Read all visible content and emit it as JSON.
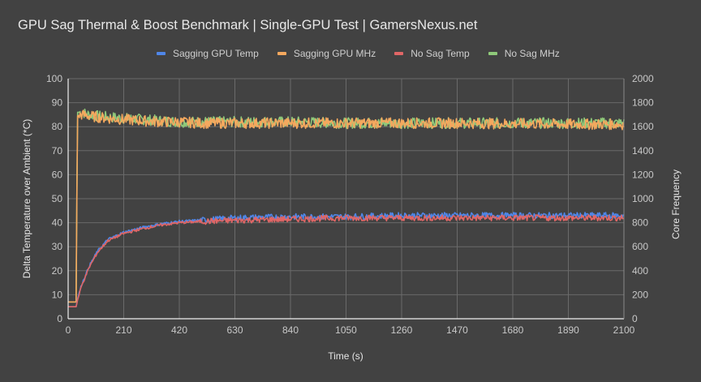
{
  "title": "GPU Sag Thermal & Boost Benchmark | Single-GPU Test | GamersNexus.net",
  "legend": [
    {
      "label": "Sagging GPU Temp",
      "color": "#4f86e8"
    },
    {
      "label": "Sagging GPU MHz",
      "color": "#f4a85e"
    },
    {
      "label": "No Sag Temp",
      "color": "#e06666"
    },
    {
      "label": "No Sag MHz",
      "color": "#8fc97a"
    }
  ],
  "chart_data": {
    "type": "line",
    "title": "GPU Sag Thermal & Boost Benchmark | Single-GPU Test | GamersNexus.net",
    "xlabel": "Time (s)",
    "ylabel": "Delta Temperature over Ambient (*C)",
    "y2label": "Core Frequency",
    "xlim": [
      0,
      2100
    ],
    "ylim": [
      0,
      100
    ],
    "y2lim": [
      0,
      2000
    ],
    "x_ticks": [
      "0",
      "210",
      "420",
      "630",
      "840",
      "1050",
      "1260",
      "1470",
      "1680",
      "1890",
      "2100"
    ],
    "y_ticks": [
      "0",
      "10",
      "20",
      "30",
      "40",
      "50",
      "60",
      "70",
      "80",
      "90",
      "100"
    ],
    "y2_ticks": [
      "0",
      "200",
      "400",
      "600",
      "800",
      "1000",
      "1200",
      "1400",
      "1600",
      "1800",
      "2000"
    ],
    "grid": true,
    "legend_position": "top",
    "x": [
      0,
      30,
      35,
      50,
      80,
      110,
      150,
      210,
      280,
      350,
      420,
      500,
      630,
      840,
      1050,
      1260,
      1470,
      1680,
      1890,
      2100
    ],
    "series": [
      {
        "name": "Sagging GPU Temp",
        "axis": "left",
        "color": "#4f86e8",
        "values": [
          5,
          5,
          8,
          14,
          22,
          28,
          33,
          36,
          38,
          39.5,
          40.5,
          41,
          42,
          42.5,
          42.5,
          43,
          43,
          43,
          43,
          43
        ]
      },
      {
        "name": "Sagging GPU MHz",
        "axis": "right",
        "color": "#f4a85e",
        "values": [
          140,
          140,
          1690,
          1700,
          1690,
          1680,
          1670,
          1660,
          1650,
          1640,
          1640,
          1630,
          1630,
          1630,
          1630,
          1630,
          1630,
          1625,
          1620,
          1620
        ]
      },
      {
        "name": "No Sag Temp",
        "axis": "left",
        "color": "#e06666",
        "values": [
          5,
          5,
          7.5,
          13.5,
          21.5,
          27.5,
          32.5,
          35.5,
          37.5,
          39,
          40,
          40.5,
          41,
          41.5,
          42,
          42,
          42,
          42,
          42,
          42
        ]
      },
      {
        "name": "No Sag MHz",
        "axis": "right",
        "color": "#8fc97a",
        "values": [
          140,
          140,
          1720,
          1720,
          1700,
          1690,
          1680,
          1670,
          1660,
          1650,
          1640,
          1640,
          1640,
          1640,
          1630,
          1630,
          1630,
          1630,
          1630,
          1630
        ]
      }
    ],
    "annotations": []
  }
}
